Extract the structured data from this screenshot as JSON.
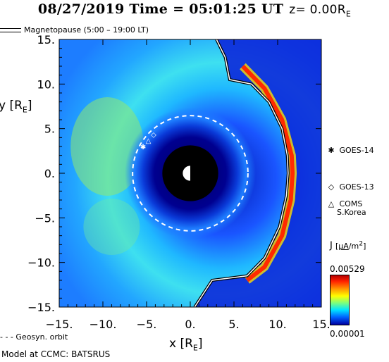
{
  "title": {
    "main": "08/27/2019 Time = 05:01:25 UT",
    "z_label": "z= 0.00R",
    "z_sub": "E"
  },
  "magnetopause_legend": "Magnetopause (5:00 – 19:00 LT)",
  "spacecraft": [
    {
      "name": "GOES-14",
      "icon": "asterisk-icon",
      "symbol": "✱"
    },
    {
      "name": "GOES-13",
      "icon": "diamond-icon",
      "symbol": "◇"
    },
    {
      "name": "COMS",
      "sub": "S.Korea",
      "icon": "triangle-icon",
      "symbol": "△"
    }
  ],
  "colorbar": {
    "quantity": "J",
    "unit_num": "μA",
    "unit_den": "m",
    "unit_den_exp": "2",
    "max": "0.00529",
    "min": "0.00001",
    "colors": [
      "#b30000",
      "#ff2000",
      "#ff9a00",
      "#ffff00",
      "#7dff7d",
      "#00e5ff",
      "#0060ff",
      "#0000a0"
    ]
  },
  "geosyn_legend": "Geosyn. orbit",
  "credit": "Model at CCMC: BATSRUS",
  "chart_data": {
    "type": "heatmap",
    "xlabel": "x [R",
    "xlabel_sub": "E",
    "ylabel": "y [R",
    "ylabel_sub": "E",
    "xlim": [
      -15,
      15
    ],
    "ylim": [
      -15,
      15
    ],
    "xticks": [
      "−15.",
      "−10.",
      "−5.",
      "0.",
      "5.",
      "10.",
      "15."
    ],
    "yticks": [
      "15.",
      "10.",
      "5.",
      "0.",
      "−5.",
      "−10.",
      "−15."
    ],
    "xtick_values": [
      -15,
      -10,
      -5,
      0,
      5,
      10,
      15
    ],
    "ytick_values": [
      15,
      10,
      5,
      0,
      -5,
      -10,
      -15
    ],
    "geosync_radius": 6.6,
    "earth_disk_radius": 3.2,
    "magnetopause": [
      {
        "x": 3,
        "y": 15
      },
      {
        "x": 4,
        "y": 13
      },
      {
        "x": 4.5,
        "y": 10.5
      },
      {
        "x": 7,
        "y": 10
      },
      {
        "x": 9,
        "y": 8
      },
      {
        "x": 10.5,
        "y": 5
      },
      {
        "x": 11.1,
        "y": 2
      },
      {
        "x": 11.2,
        "y": 0
      },
      {
        "x": 11,
        "y": -2.5
      },
      {
        "x": 10.2,
        "y": -6
      },
      {
        "x": 8.5,
        "y": -9.5
      },
      {
        "x": 6.5,
        "y": -11.5
      },
      {
        "x": 2.5,
        "y": -12
      },
      {
        "x": 0.5,
        "y": -15
      }
    ],
    "current_sheet": [
      {
        "x": 6,
        "y": 12
      },
      {
        "x": 8.5,
        "y": 9.5
      },
      {
        "x": 10.5,
        "y": 6
      },
      {
        "x": 11.6,
        "y": 2
      },
      {
        "x": 11.7,
        "y": 0
      },
      {
        "x": 11.5,
        "y": -3
      },
      {
        "x": 10.5,
        "y": -7
      },
      {
        "x": 8.5,
        "y": -10.5
      },
      {
        "x": 6.5,
        "y": -12
      }
    ],
    "spacecraft_positions": [
      {
        "name": "GOES-14",
        "x": -5.4,
        "y": 3.0
      },
      {
        "name": "GOES-13",
        "x": -4.2,
        "y": 4.4
      },
      {
        "name": "COMS",
        "x": -4.8,
        "y": 3.7
      }
    ]
  }
}
